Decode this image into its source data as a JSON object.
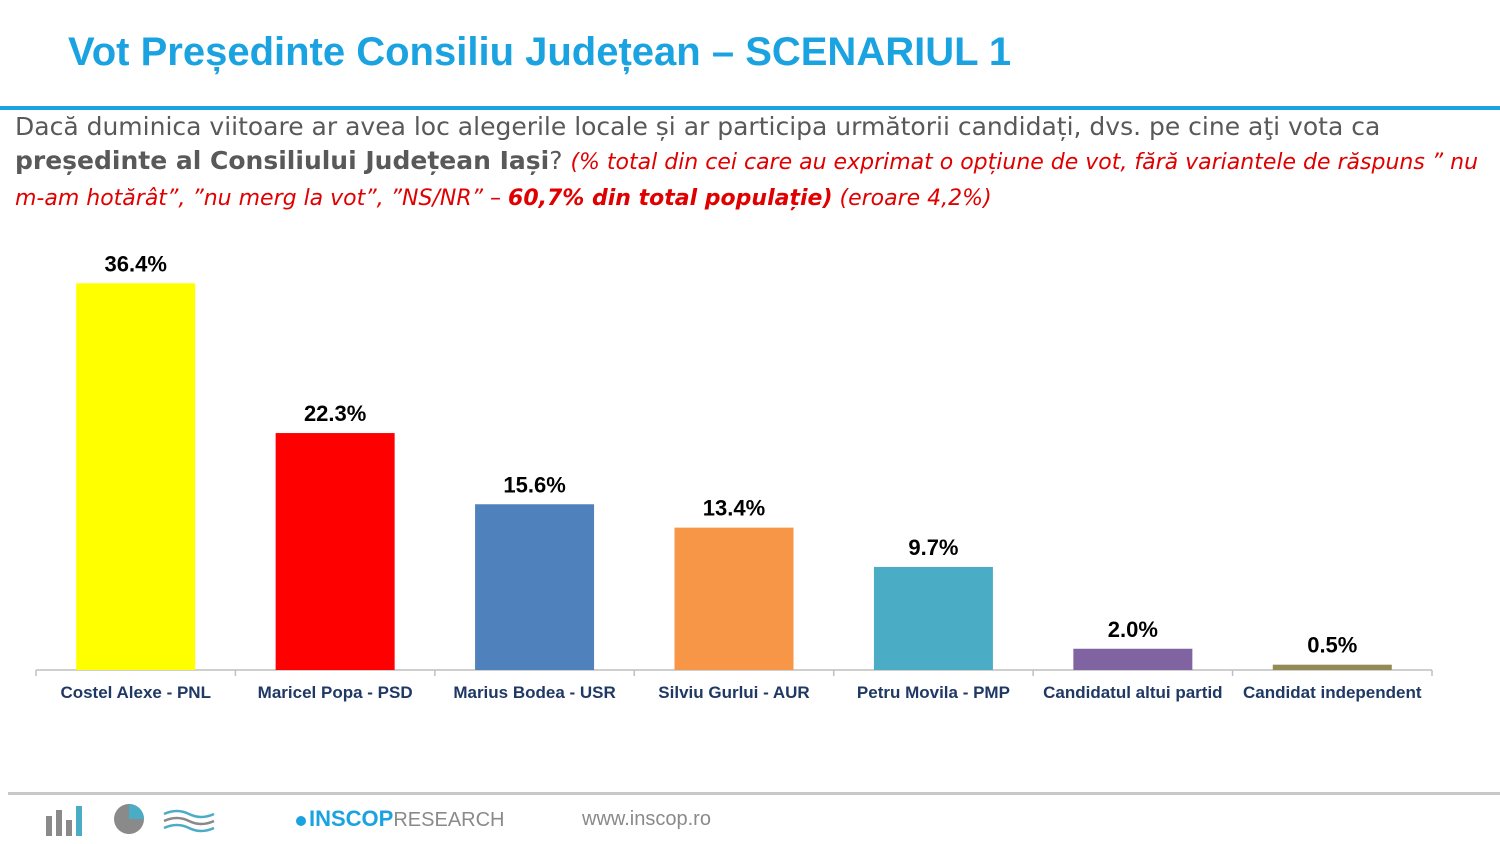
{
  "title": "Vot Președinte Consiliu Județean – SCENARIUL 1",
  "question": {
    "text_plain": "Dacă duminica viitoare ar avea loc alegerile locale și ar participa următorii candidați, dvs. pe cine aţi vota ca ",
    "text_bold": "președinte al Consiliului Județean Iași",
    "text_qmark": "? ",
    "note_start": "(% total din cei care au exprimat o opțiune de vot, fără variantele de răspuns ” nu m-am hotărât”, ”nu merg la vot”, ”NS/NR” – ",
    "note_bold": "60,7% din total populație)",
    "note_end": " (eroare 4,2%)"
  },
  "chart_data": {
    "type": "bar",
    "title": "",
    "xlabel": "",
    "ylabel": "",
    "ylim": [
      0,
      40
    ],
    "grid": false,
    "categories": [
      "Costel Alexe - PNL",
      "Maricel Popa - PSD",
      "Marius Bodea - USR",
      "Silviu Gurlui - AUR",
      "Petru Movila - PMP",
      "Candidatul altui partid",
      "Candidat independent"
    ],
    "values": [
      36.4,
      22.3,
      15.6,
      13.4,
      9.7,
      2.0,
      0.5
    ],
    "value_labels": [
      "36.4%",
      "22.3%",
      "15.6%",
      "13.4%",
      "9.7%",
      "2.0%",
      "0.5%"
    ],
    "colors": [
      "#ffff00",
      "#ff0000",
      "#4f81bd",
      "#f79646",
      "#4bacc6",
      "#8064a2",
      "#948a54"
    ]
  },
  "footer": {
    "brand": "INSCOP",
    "brand_suffix": "RESEARCH",
    "website": "www.inscop.ro",
    "icons": [
      "bar-chart-icon",
      "pie-chart-icon",
      "wave-icon"
    ],
    "accent": "#1aa3e0"
  }
}
